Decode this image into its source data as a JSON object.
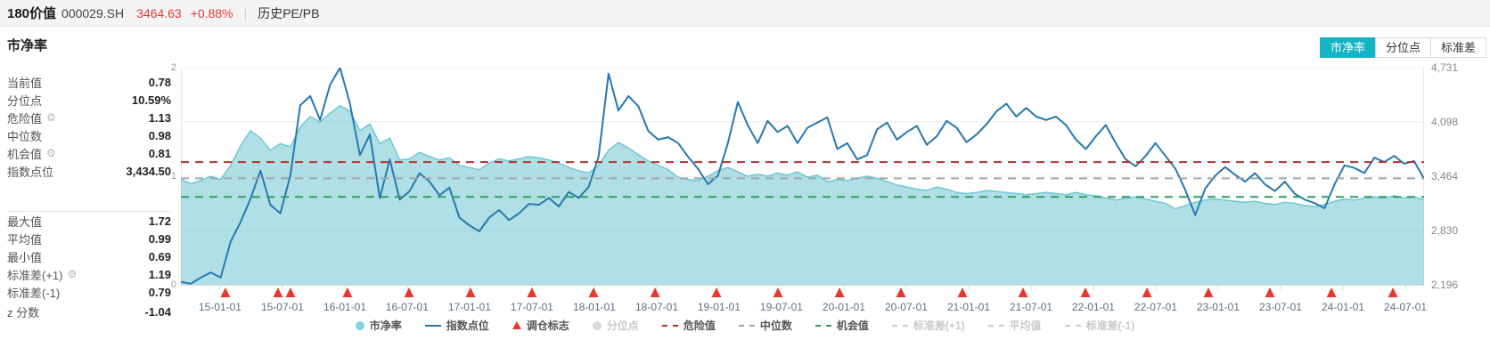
{
  "header": {
    "name": "180价值",
    "code": "000029.SH",
    "price": "3464.63",
    "change": "+0.88%",
    "divider": "|",
    "pepb_label": "历史PE/PB"
  },
  "section": {
    "title": "市净率"
  },
  "view_tabs": [
    {
      "label": "市净率",
      "active": true
    },
    {
      "label": "分位点",
      "active": false
    },
    {
      "label": "标准差",
      "active": false
    }
  ],
  "stats": {
    "group1": [
      {
        "label": "当前值",
        "value": "0.78",
        "gear": false
      },
      {
        "label": "分位点",
        "value": "10.59%",
        "gear": false
      },
      {
        "label": "危险值",
        "value": "1.13",
        "gear": true
      },
      {
        "label": "中位数",
        "value": "0.98",
        "gear": false
      },
      {
        "label": "机会值",
        "value": "0.81",
        "gear": true
      },
      {
        "label": "指数点位",
        "value": "3,434.50",
        "gear": false
      }
    ],
    "group2": [
      {
        "label": "最大值",
        "value": "1.72",
        "gear": false
      },
      {
        "label": "平均值",
        "value": "0.99",
        "gear": false
      },
      {
        "label": "最小值",
        "value": "0.69",
        "gear": false
      },
      {
        "label": "标准差(+1)",
        "value": "1.19",
        "gear": true
      },
      {
        "label": "标准差(-1)",
        "value": "0.79",
        "gear": false
      }
    ],
    "z": {
      "label": "z 分数",
      "value": "-1.04"
    }
  },
  "colors": {
    "accent_teal": "#13b5c4",
    "pb_area_fill": "#6fc7d2",
    "pb_area_stroke": "#63c3cf",
    "index_line": "#2778ae",
    "danger_red": "#b5312d",
    "median_gray": "#9fa6ad",
    "chance_green": "#2e9e62",
    "triangle_red": "#ea372b",
    "grid": "#ececec",
    "axis": "#d9d9d9",
    "up_red_text": "#e23b3b"
  },
  "chart_data": {
    "type": "area+line combo (PB ratio area on left axis, index level line on right axis)",
    "title": "市净率",
    "y_left": {
      "min": 0,
      "max": 2,
      "ticks": [
        {
          "label": "2",
          "frac": 1
        },
        {
          "label": "1",
          "frac": 0.5
        },
        {
          "label": "0",
          "frac": 0
        }
      ]
    },
    "y_right": {
      "min": 2196,
      "max": 4731,
      "ticks": [
        {
          "label": "4,731",
          "value": 4731
        },
        {
          "label": "4,098",
          "value": 4098
        },
        {
          "label": "3,464",
          "value": 3464
        },
        {
          "label": "2,830",
          "value": 2830
        },
        {
          "label": "2,196",
          "value": 2196
        }
      ]
    },
    "x_ticks": [
      {
        "label": "15-01-01",
        "f": 0.0315
      },
      {
        "label": "15-07-01",
        "f": 0.0817
      },
      {
        "label": "16-01-01",
        "f": 0.1319
      },
      {
        "label": "16-07-01",
        "f": 0.182
      },
      {
        "label": "17-01-01",
        "f": 0.2322
      },
      {
        "label": "17-07-01",
        "f": 0.2824
      },
      {
        "label": "18-01-01",
        "f": 0.3326
      },
      {
        "label": "18-07-01",
        "f": 0.3828
      },
      {
        "label": "19-01-01",
        "f": 0.4329
      },
      {
        "label": "19-07-01",
        "f": 0.4831
      },
      {
        "label": "20-01-01",
        "f": 0.5333
      },
      {
        "label": "20-07-01",
        "f": 0.5835
      },
      {
        "label": "21-01-01",
        "f": 0.6337
      },
      {
        "label": "21-07-01",
        "f": 0.6839
      },
      {
        "label": "22-01-01",
        "f": 0.734
      },
      {
        "label": "22-07-01",
        "f": 0.7842
      },
      {
        "label": "23-01-01",
        "f": 0.8344
      },
      {
        "label": "23-07-01",
        "f": 0.8846
      },
      {
        "label": "24-01-01",
        "f": 0.9348
      },
      {
        "label": "24-07-01",
        "f": 0.985
      }
    ],
    "series": {
      "pb": {
        "name": "市净率",
        "axis": "left",
        "values": [
          0.97,
          0.93,
          0.96,
          1.0,
          0.97,
          1.1,
          1.28,
          1.42,
          1.35,
          1.24,
          1.3,
          1.27,
          1.45,
          1.55,
          1.5,
          1.58,
          1.65,
          1.6,
          1.42,
          1.48,
          1.3,
          1.35,
          1.15,
          1.16,
          1.22,
          1.18,
          1.15,
          1.17,
          1.1,
          1.08,
          1.06,
          1.12,
          1.16,
          1.14,
          1.16,
          1.18,
          1.17,
          1.15,
          1.12,
          1.08,
          1.05,
          1.03,
          1.1,
          1.24,
          1.31,
          1.26,
          1.2,
          1.14,
          1.1,
          1.06,
          0.99,
          0.97,
          0.96,
          1.0,
          1.05,
          1.08,
          1.04,
          1.0,
          1.02,
          1.0,
          1.03,
          1.01,
          1.04,
          0.99,
          1.01,
          0.95,
          0.97,
          0.96,
          0.98,
          1.0,
          0.98,
          0.95,
          0.92,
          0.9,
          0.88,
          0.87,
          0.9,
          0.88,
          0.85,
          0.84,
          0.85,
          0.87,
          0.86,
          0.85,
          0.84,
          0.83,
          0.84,
          0.85,
          0.84,
          0.83,
          0.85,
          0.83,
          0.82,
          0.8,
          0.78,
          0.8,
          0.81,
          0.79,
          0.77,
          0.75,
          0.7,
          0.73,
          0.76,
          0.78,
          0.79,
          0.78,
          0.77,
          0.76,
          0.77,
          0.75,
          0.74,
          0.76,
          0.75,
          0.73,
          0.72,
          0.74,
          0.77,
          0.79,
          0.78,
          0.8,
          0.81,
          0.8,
          0.82,
          0.8,
          0.81,
          0.78
        ]
      },
      "index": {
        "name": "指数点位",
        "axis": "right",
        "values": [
          2230,
          2210,
          2280,
          2340,
          2280,
          2700,
          2930,
          3200,
          3530,
          3130,
          3030,
          3470,
          4290,
          4400,
          4120,
          4530,
          4730,
          4310,
          3710,
          3950,
          3210,
          3660,
          3190,
          3290,
          3500,
          3400,
          3240,
          3330,
          2980,
          2890,
          2820,
          2980,
          3070,
          2950,
          3030,
          3140,
          3130,
          3210,
          3110,
          3280,
          3210,
          3340,
          3690,
          4660,
          4230,
          4400,
          4280,
          3990,
          3890,
          3920,
          3850,
          3690,
          3550,
          3370,
          3470,
          3850,
          4330,
          4060,
          3850,
          4110,
          3980,
          4050,
          3850,
          4030,
          4090,
          4150,
          3780,
          3850,
          3660,
          3710,
          4010,
          4090,
          3890,
          3980,
          4050,
          3830,
          3930,
          4110,
          4030,
          3860,
          3950,
          4070,
          4220,
          4310,
          4160,
          4260,
          4160,
          4120,
          4160,
          4060,
          3890,
          3780,
          3930,
          4060,
          3850,
          3660,
          3580,
          3700,
          3850,
          3700,
          3550,
          3300,
          3010,
          3320,
          3470,
          3570,
          3480,
          3400,
          3500,
          3370,
          3290,
          3400,
          3260,
          3190,
          3150,
          3090,
          3370,
          3590,
          3560,
          3500,
          3680,
          3630,
          3700,
          3610,
          3640,
          3435
        ]
      }
    },
    "ref_lines": [
      {
        "name": "危险值",
        "value": 1.13,
        "color": "#b5312d"
      },
      {
        "name": "中位数",
        "value": 0.98,
        "color": "#9fa6ad"
      },
      {
        "name": "机会值",
        "value": 0.81,
        "color": "#2e9e62"
      }
    ],
    "rebalance_marks_f": [
      0.0358,
      0.0781,
      0.0882,
      0.134,
      0.1835,
      0.233,
      0.2824,
      0.3319,
      0.3814,
      0.4308,
      0.4803,
      0.5298,
      0.5792,
      0.6287,
      0.6774,
      0.7276,
      0.7771,
      0.8265,
      0.876,
      0.9255,
      0.975
    ],
    "legend": [
      {
        "label": "市净率",
        "marker": "circle",
        "color": "#7fd3dc",
        "active": true
      },
      {
        "label": "指数点位",
        "marker": "line",
        "color": "#2778ae",
        "active": true
      },
      {
        "label": "调仓标志",
        "marker": "triangle",
        "color": "#ea372b",
        "active": true
      },
      {
        "label": "分位点",
        "marker": "circle",
        "color": "#d9d9d9",
        "active": false
      },
      {
        "label": "危险值",
        "marker": "dash",
        "color": "#b5312d",
        "active": true
      },
      {
        "label": "中位数",
        "marker": "dash",
        "color": "#9fa6ad",
        "active": true
      },
      {
        "label": "机会值",
        "marker": "dash",
        "color": "#2e9e62",
        "active": true
      },
      {
        "label": "标准差(+1)",
        "marker": "dash",
        "color": "#cccccc",
        "active": false
      },
      {
        "label": "平均值",
        "marker": "dash",
        "color": "#cccccc",
        "active": false
      },
      {
        "label": "标准差(-1)",
        "marker": "dash",
        "color": "#cccccc",
        "active": false
      }
    ],
    "grid": "horizontal only",
    "legend_position": "bottom-center"
  }
}
